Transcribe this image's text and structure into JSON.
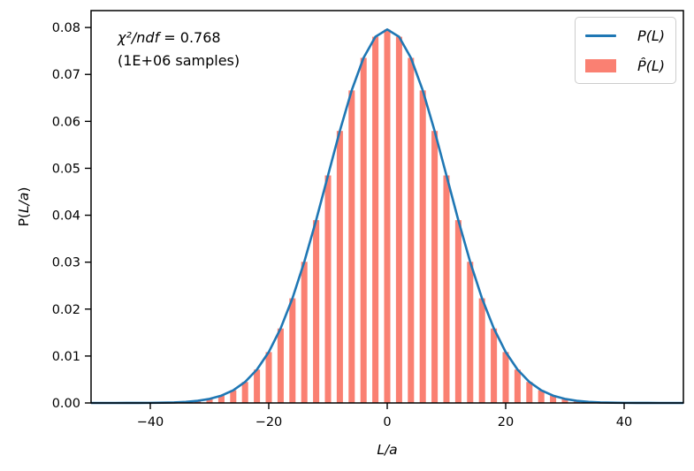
{
  "figure": {
    "ylabel": {
      "pre": "P(",
      "math": "L/a",
      "post": ")"
    },
    "xlabel": "L/a",
    "annotation": {
      "line1_math": "χ²/ndf",
      "line1_value": " = 0.768",
      "line2": "(1E+06 samples)"
    },
    "legend": {
      "items": [
        {
          "label": "P(L)",
          "type": "line",
          "color": "#1f77b4"
        },
        {
          "label": "P̂(L)",
          "type": "patch",
          "color": "#fa8072"
        }
      ]
    }
  },
  "chart_data": {
    "type": "line+bar",
    "title": "",
    "xlabel": "L/a",
    "ylabel": "P(L/a)",
    "xlim": [
      -50,
      50
    ],
    "ylim": [
      0,
      0.0836
    ],
    "x_ticks": [
      -40,
      -20,
      0,
      20,
      40
    ],
    "y_ticks": [
      0.0,
      0.01,
      0.02,
      0.03,
      0.04,
      0.05,
      0.06,
      0.07,
      0.08
    ],
    "grid": false,
    "legend_position": "upper right",
    "annotation_text": "χ²/ndf = 0.768 (1E+06 samples)",
    "line_series": {
      "name": "P(L)",
      "color": "#1f77b4",
      "x": [
        -50,
        -48,
        -46,
        -44,
        -42,
        -40,
        -38,
        -36,
        -34,
        -32,
        -30,
        -28,
        -26,
        -24,
        -22,
        -20,
        -18,
        -16,
        -14,
        -12,
        -10,
        -8,
        -6,
        -4,
        -2,
        0,
        2,
        4,
        6,
        8,
        10,
        12,
        14,
        16,
        18,
        20,
        22,
        24,
        26,
        28,
        30,
        32,
        34,
        36,
        38,
        40,
        42,
        44,
        46,
        48,
        50
      ],
      "y": [
        2e-07,
        6e-07,
        1.5e-06,
        3.9e-06,
        9.8e-06,
        2.32e-05,
        5.23e-05,
        0.000113,
        0.000233,
        0.000458,
        0.000864,
        0.00156,
        0.002698,
        0.004473,
        0.007111,
        0.010844,
        0.01587,
        0.022294,
        0.030072,
        0.038953,
        0.048476,
        0.05796,
        0.06659,
        0.073527,
        0.078029,
        0.079589,
        0.078029,
        0.073527,
        0.06659,
        0.05796,
        0.048476,
        0.038953,
        0.030072,
        0.022294,
        0.01587,
        0.010844,
        0.007111,
        0.004473,
        0.002698,
        0.00156,
        0.000864,
        0.000458,
        0.000233,
        0.000113,
        5.23e-05,
        2.32e-05,
        9.8e-06,
        3.9e-06,
        1.5e-06,
        6e-07,
        2e-07
      ]
    },
    "bar_series": {
      "name": "P̂(L)",
      "color": "#fa8072",
      "bar_width": 1.05,
      "x": [
        -34,
        -32,
        -30,
        -28,
        -26,
        -24,
        -22,
        -20,
        -18,
        -16,
        -14,
        -12,
        -10,
        -8,
        -6,
        -4,
        -2,
        0,
        2,
        4,
        6,
        8,
        10,
        12,
        14,
        16,
        18,
        20,
        22,
        24,
        26,
        28,
        30,
        32,
        34
      ],
      "y": [
        0.000233,
        0.000458,
        0.000864,
        0.00156,
        0.002698,
        0.004473,
        0.007111,
        0.010844,
        0.01587,
        0.022294,
        0.030072,
        0.038953,
        0.048476,
        0.05796,
        0.06659,
        0.073527,
        0.078029,
        0.079589,
        0.078029,
        0.073527,
        0.06659,
        0.05796,
        0.048476,
        0.038953,
        0.030072,
        0.022294,
        0.01587,
        0.010844,
        0.007111,
        0.004473,
        0.002698,
        0.00156,
        0.000864,
        0.000458,
        0.000233
      ]
    }
  }
}
